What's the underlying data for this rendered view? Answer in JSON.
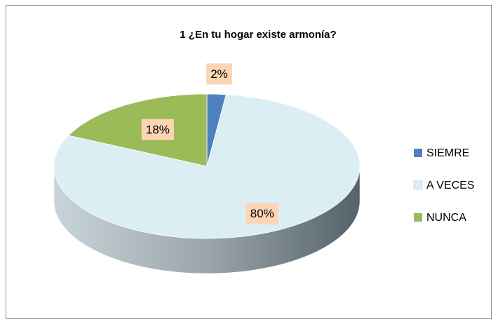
{
  "chart_data": {
    "type": "pie",
    "title": "1 ¿En tu hogar existe armonía?",
    "categories": [
      "SIEMRE",
      "A VECES",
      "NUNCA"
    ],
    "values": [
      2,
      80,
      18
    ],
    "value_labels": [
      "2%",
      "80%",
      "18%"
    ],
    "colors": [
      "#4f81bd",
      "#dbeef4",
      "#9bbb59"
    ],
    "legend": "right"
  }
}
